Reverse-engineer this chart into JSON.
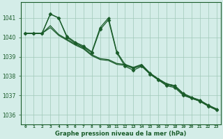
{
  "title": "Graphe pression niveau de la mer (hPa)",
  "background_color": "#d4ede8",
  "grid_color": "#a0c8b8",
  "line_color": "#1a5c2a",
  "marker_color": "#1a5c2a",
  "xlim": [
    -0.5,
    23.5
  ],
  "ylim": [
    1035.5,
    1041.8
  ],
  "yticks": [
    1036,
    1037,
    1038,
    1039,
    1040,
    1041
  ],
  "xtick_labels": [
    "0",
    "1",
    "2",
    "3",
    "4",
    "5",
    "6",
    "7",
    "8",
    "9",
    "10",
    "11",
    "12",
    "13",
    "14",
    "15",
    "16",
    "17",
    "18",
    "19",
    "20",
    "21",
    "22",
    "23"
  ],
  "series": [
    {
      "x": [
        0,
        1,
        2,
        3,
        4,
        5,
        6,
        7,
        8,
        9,
        10,
        11,
        12,
        13,
        14,
        15,
        16,
        17,
        18,
        19,
        20,
        21,
        22,
        23
      ],
      "y": [
        1040.2,
        1040.2,
        1040.2,
        1041.2,
        1041.0,
        1040.0,
        1039.7,
        1039.5,
        1039.2,
        1040.4,
        1040.9,
        1039.2,
        1038.5,
        1038.3,
        1038.5,
        1038.1,
        1037.8,
        1037.5,
        1037.4,
        1037.0,
        1036.85,
        1036.7,
        1036.45,
        1036.25
      ],
      "marker": "D",
      "ms": 2.5,
      "lw": 0.9,
      "zorder": 4
    },
    {
      "x": [
        0,
        1,
        2,
        3,
        4,
        5,
        6,
        7,
        8,
        9,
        10,
        11,
        12,
        13,
        14,
        15,
        16,
        17,
        18,
        19,
        20,
        21,
        22,
        23
      ],
      "y": [
        1040.2,
        1040.2,
        1040.2,
        1041.2,
        1041.0,
        1040.05,
        1039.75,
        1039.55,
        1039.25,
        1040.5,
        1041.0,
        1039.25,
        1038.6,
        1038.4,
        1038.55,
        1038.15,
        1037.85,
        1037.6,
        1037.5,
        1037.1,
        1036.9,
        1036.75,
        1036.5,
        1036.3
      ],
      "marker": "D",
      "ms": 2.0,
      "lw": 0.9,
      "zorder": 3
    },
    {
      "x": [
        0,
        1,
        2,
        3,
        4,
        5,
        6,
        7,
        8,
        9,
        10,
        11,
        12,
        13,
        14,
        15,
        16,
        17,
        18,
        19,
        20,
        21,
        22,
        23
      ],
      "y": [
        1040.2,
        1040.2,
        1040.2,
        1040.5,
        1040.1,
        1039.85,
        1039.6,
        1039.4,
        1039.05,
        1038.85,
        1038.8,
        1038.6,
        1038.55,
        1038.4,
        1038.55,
        1038.1,
        1037.8,
        1037.55,
        1037.45,
        1037.05,
        1036.85,
        1036.7,
        1036.45,
        1036.25
      ],
      "marker": null,
      "ms": 0,
      "lw": 0.9,
      "zorder": 2
    },
    {
      "x": [
        0,
        1,
        2,
        3,
        4,
        5,
        6,
        7,
        8,
        9,
        10,
        11,
        12,
        13,
        14,
        15,
        16,
        17,
        18,
        19,
        20,
        21,
        22,
        23
      ],
      "y": [
        1040.2,
        1040.2,
        1040.2,
        1040.6,
        1040.15,
        1039.9,
        1039.65,
        1039.45,
        1039.1,
        1038.9,
        1038.85,
        1038.65,
        1038.6,
        1038.45,
        1038.6,
        1038.15,
        1037.85,
        1037.6,
        1037.5,
        1037.1,
        1036.9,
        1036.75,
        1036.5,
        1036.3
      ],
      "marker": null,
      "ms": 0,
      "lw": 0.9,
      "zorder": 2
    }
  ]
}
